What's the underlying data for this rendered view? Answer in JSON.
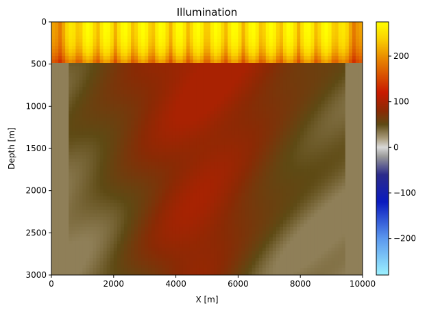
{
  "chart_data": {
    "type": "heatmap",
    "title": "Illumination",
    "xlabel": "X [m]",
    "ylabel": "Depth [m]",
    "xlim": [
      0,
      10000
    ],
    "ylim": [
      3000,
      0
    ],
    "x_ticks": [
      0,
      2000,
      4000,
      6000,
      8000,
      10000
    ],
    "y_ticks": [
      0,
      500,
      1000,
      1500,
      2000,
      2500,
      3000
    ],
    "x_tick_labels": [
      "0",
      "2000",
      "4000",
      "6000",
      "8000",
      "10000"
    ],
    "y_tick_labels": [
      "0",
      "500",
      "1000",
      "1500",
      "2000",
      "2500",
      "3000"
    ],
    "colorbar": {
      "ticks": [
        -200,
        -100,
        0,
        100,
        200
      ],
      "tick_labels": [
        "−200",
        "−100",
        "0",
        "100",
        "200"
      ],
      "range": [
        -280,
        275
      ],
      "colormap_stops": [
        {
          "value": -280,
          "color": "#9cf1ff"
        },
        {
          "value": -200,
          "color": "#5b98ee"
        },
        {
          "value": -120,
          "color": "#0a1abf"
        },
        {
          "value": -60,
          "color": "#2b2b8a"
        },
        {
          "value": -20,
          "color": "#9a9a9a"
        },
        {
          "value": 0,
          "color": "#d8d8d8"
        },
        {
          "value": 20,
          "color": "#a89a7a"
        },
        {
          "value": 50,
          "color": "#5e4a14"
        },
        {
          "value": 80,
          "color": "#8a2a04"
        },
        {
          "value": 120,
          "color": "#c81a00"
        },
        {
          "value": 190,
          "color": "#e78000"
        },
        {
          "value": 240,
          "color": "#fbd400"
        },
        {
          "value": 275,
          "color": "#ffff00"
        }
      ]
    },
    "field_description": {
      "shallow_band_depth": [
        0,
        500
      ],
      "shallow_band_value_range": [
        150,
        275
      ],
      "deep_value_range": [
        30,
        100
      ],
      "grid": false
    }
  }
}
